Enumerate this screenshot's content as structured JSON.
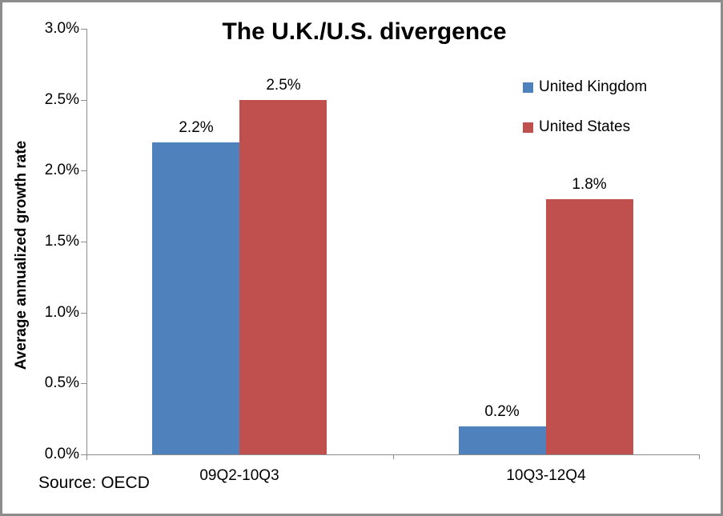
{
  "source_note": "Source: OECD",
  "colors": {
    "uk_blue": "#4F81BD",
    "us_red": "#C0504D",
    "axis_gray": "#8C8C8C",
    "frame_border_gray": "#8C8C8C",
    "text": "#000000",
    "background": "#FFFFFF"
  },
  "chart_data": {
    "type": "bar",
    "title": "The U.K./U.S. divergence",
    "xlabel": "",
    "ylabel": "Average annualized growth rate",
    "categories": [
      "09Q2-10Q3",
      "10Q3-12Q4"
    ],
    "series": [
      {
        "name": "United Kingdom",
        "color": "#4F81BD",
        "values": [
          2.2,
          0.2
        ],
        "labels": [
          "2.2%",
          "0.2%"
        ]
      },
      {
        "name": "United States",
        "color": "#C0504D",
        "values": [
          2.5,
          1.8
        ],
        "labels": [
          "2.5%",
          "1.8%"
        ]
      }
    ],
    "ylim": [
      0,
      3.0
    ],
    "ytick_step": 0.5,
    "ytick_labels": [
      "0.0%",
      "0.5%",
      "1.0%",
      "1.5%",
      "2.0%",
      "2.5%",
      "3.0%"
    ],
    "grid": false,
    "legend_position": "upper-right",
    "annotation": "Source: OECD"
  }
}
